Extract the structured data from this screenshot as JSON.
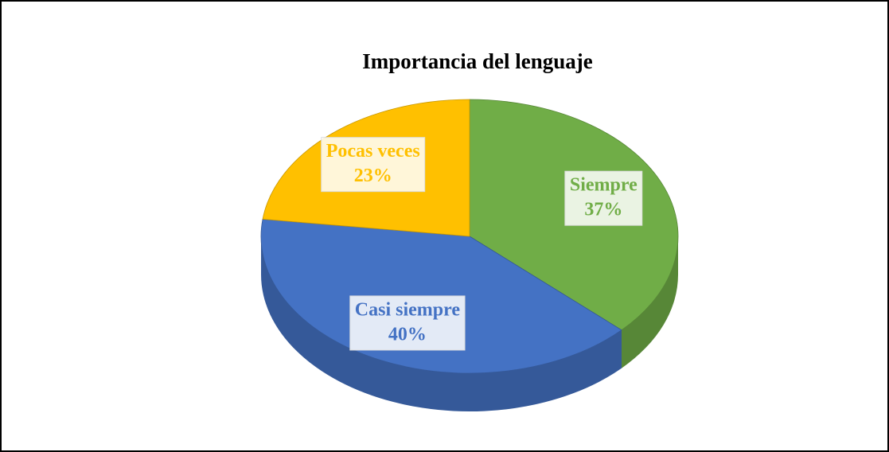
{
  "chart_data": {
    "type": "pie",
    "title": "Importancia del lenguaje",
    "categories": [
      "Siempre",
      "Casi siempre",
      "Pocas veces"
    ],
    "values": [
      37,
      40,
      23
    ],
    "value_labels": [
      "37%",
      "40%",
      "23%"
    ],
    "colors": [
      "#70ad47",
      "#4472c4",
      "#ffc000"
    ]
  }
}
